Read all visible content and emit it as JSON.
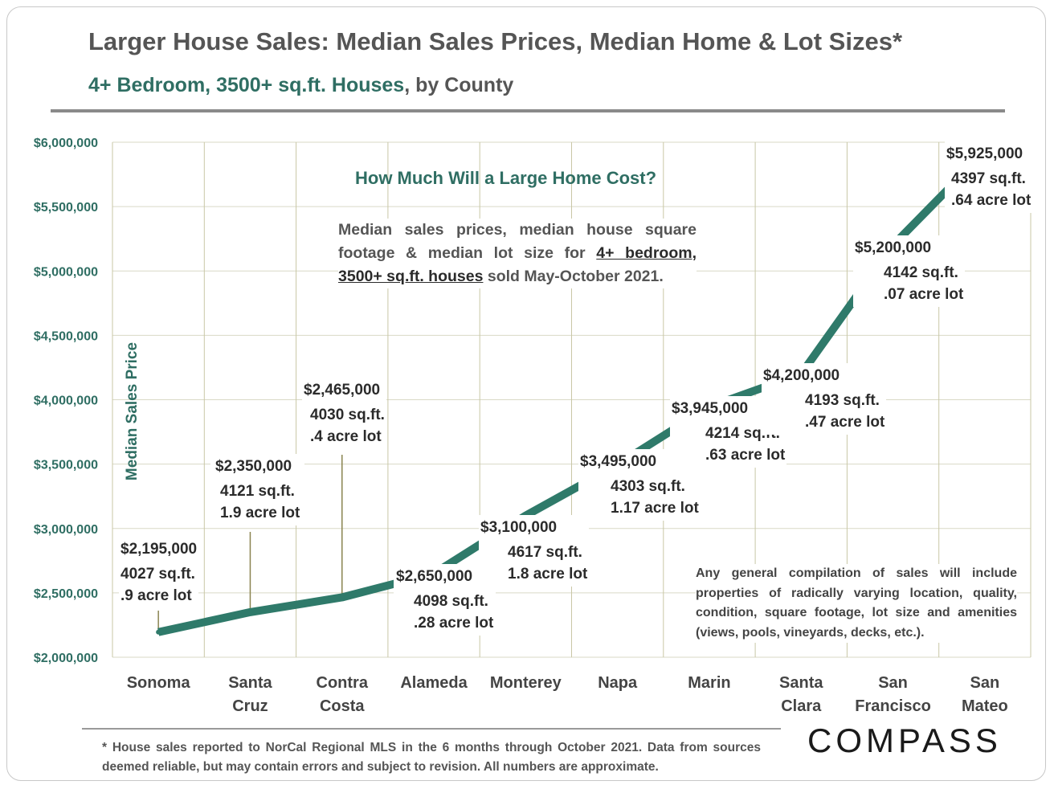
{
  "title": "Larger House Sales: Median Sales Prices, Median Home & Lot Sizes*",
  "subtitle_main": "4+ Bedroom, 3500+ sq.ft. Houses",
  "subtitle_tail": ", by County",
  "inset": {
    "title": "How Much Will a Large Home Cost?",
    "text_a": "Median sales prices, median house square footage & median lot size for ",
    "text_u1": "4+ bedroom,",
    "text_u2": "3500+ sq.ft. houses",
    "text_b": " sold May-October 2021."
  },
  "disclaimer": "Any general compilation of sales will include properties of radically varying location, quality, condition, square footage, lot size and amenities (views, pools, vineyards, decks, etc.).",
  "footnote": "* House sales reported to NorCal Regional MLS in the 6 months through October 2021. Data from sources deemed reliable, but may contain errors and subject to revision. All numbers are approximate.",
  "logo": "COMPASS",
  "colors": {
    "line": "#2f7a6a",
    "accent": "#2f6e63",
    "grid": "#d9d9c6",
    "leader": "#8a8450"
  },
  "chart_data": {
    "type": "line",
    "ylabel": "Median Sales Price",
    "ylim": [
      2000000,
      6000000
    ],
    "yticks": [
      {
        "value": 2000000,
        "label": "$2,000,000"
      },
      {
        "value": 2500000,
        "label": "$2,500,000"
      },
      {
        "value": 3000000,
        "label": "$3,000,000"
      },
      {
        "value": 3500000,
        "label": "$3,500,000"
      },
      {
        "value": 4000000,
        "label": "$4,000,000"
      },
      {
        "value": 4500000,
        "label": "$4,500,000"
      },
      {
        "value": 5000000,
        "label": "$5,000,000"
      },
      {
        "value": 5500000,
        "label": "$5,500,000"
      },
      {
        "value": 6000000,
        "label": "$6,000,000"
      }
    ],
    "categories": [
      "Sonoma",
      "Santa Cruz",
      "Contra Costa",
      "Alameda",
      "Monterey",
      "Napa",
      "Marin",
      "Santa Clara",
      "San Francisco",
      "San Mateo"
    ],
    "category_lines": [
      [
        "Sonoma"
      ],
      [
        "Santa",
        "Cruz"
      ],
      [
        "Contra",
        "Costa"
      ],
      [
        "Alameda"
      ],
      [
        "Monterey"
      ],
      [
        "Napa"
      ],
      [
        "Marin"
      ],
      [
        "Santa",
        "Clara"
      ],
      [
        "San",
        "Francisco"
      ],
      [
        "San",
        "Mateo"
      ]
    ],
    "values": [
      2195000,
      2350000,
      2465000,
      2650000,
      3100000,
      3495000,
      3945000,
      4200000,
      5200000,
      5925000
    ],
    "data_labels": [
      {
        "price": "$2,195,000",
        "sqft": "4027 sq.ft.",
        "lot": ".9 acre lot"
      },
      {
        "price": "$2,350,000",
        "sqft": "4121 sq.ft.",
        "lot": "1.9 acre lot"
      },
      {
        "price": "$2,465,000",
        "sqft": "4030 sq.ft.",
        "lot": ".4 acre lot"
      },
      {
        "price": "$2,650,000",
        "sqft": "4098 sq.ft.",
        "lot": ".28 acre lot"
      },
      {
        "price": "$3,100,000",
        "sqft": "4617 sq.ft.",
        "lot": "1.8 acre lot"
      },
      {
        "price": "$3,495,000",
        "sqft": "4303 sq.ft.",
        "lot": "1.17 acre lot"
      },
      {
        "price": "$3,945,000",
        "sqft": "4214 sq.ft.",
        "lot": ".63 acre lot"
      },
      {
        "price": "$4,200,000",
        "sqft": "4193 sq.ft.",
        "lot": ".47 acre lot"
      },
      {
        "price": "$5,200,000",
        "sqft": "4142 sq.ft.",
        "lot": ".07 acre lot"
      },
      {
        "price": "$5,925,000",
        "sqft": "4397 sq.ft.",
        "lot": ".64 acre lot"
      }
    ],
    "grid": true,
    "legend": "none"
  }
}
